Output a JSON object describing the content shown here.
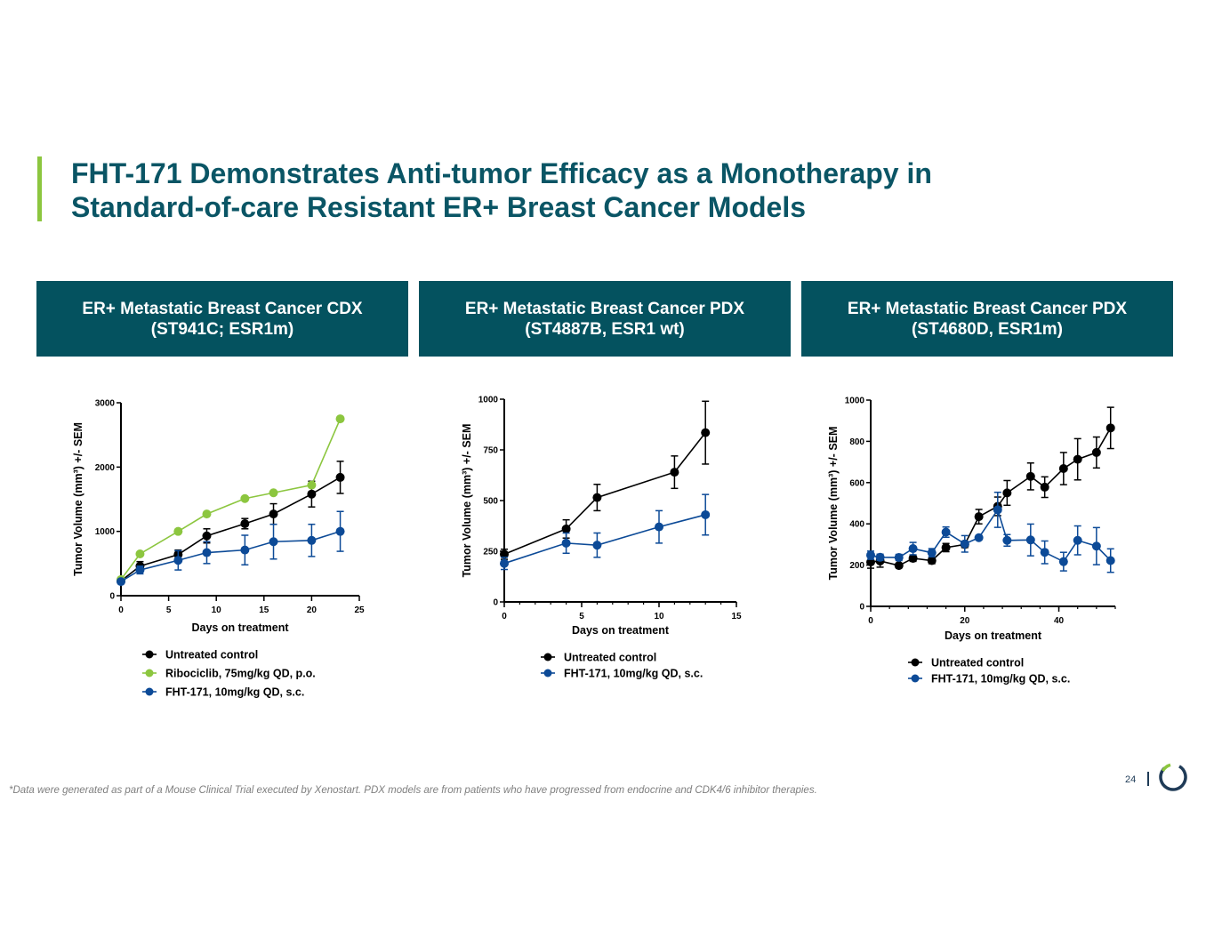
{
  "slide": {
    "title_line1": "FHT-171 Demonstrates Anti-tumor Efficacy as a Monotherapy in",
    "title_line2": "Standard-of-care Resistant ER+ Breast Cancer Models",
    "footnote": "*Data were generated as part of a Mouse Clinical Trial executed by Xenostart. PDX models are from patients who have progressed from endocrine and CDK4/6 inhibitor therapies.",
    "page_number": "24",
    "accent_color": "#8cc63f",
    "header_color": "#04525f",
    "title_color": "#0a5565"
  },
  "panels": [
    {
      "line1": "ER+ Metastatic Breast Cancer CDX",
      "line2": "(ST941C; ESR1m)"
    },
    {
      "line1": "ER+ Metastatic Breast Cancer PDX",
      "line2": "(ST4887B, ESR1 wt)"
    },
    {
      "line1": "ER+ Metastatic Breast Cancer PDX",
      "line2": "(ST4680D, ESR1m)"
    }
  ],
  "chart_data": [
    {
      "type": "line",
      "title": "ER+ Metastatic Breast Cancer CDX (ST941C; ESR1m)",
      "xlabel": "Days on treatment",
      "ylabel": "Tumor Volume (mm3) +/- SEM",
      "xlim": [
        0,
        25
      ],
      "ylim": [
        0,
        3000
      ],
      "xticks": [
        0,
        5,
        10,
        15,
        20,
        25
      ],
      "yticks": [
        0,
        1000,
        2000,
        3000
      ],
      "legend_position": "bottom",
      "series": [
        {
          "name": "Untreated control",
          "color": "#000000",
          "x": [
            0,
            2,
            6,
            9,
            13,
            16,
            20,
            23
          ],
          "y": [
            230,
            460,
            640,
            930,
            1120,
            1270,
            1580,
            1840
          ],
          "err": [
            40,
            70,
            70,
            110,
            80,
            160,
            200,
            250
          ]
        },
        {
          "name": "Ribociclib, 75mg/kg QD, p.o.",
          "color": "#8cc63f",
          "x": [
            0,
            2,
            6,
            9,
            13,
            16,
            20,
            23
          ],
          "y": [
            250,
            650,
            1000,
            1270,
            1510,
            1600,
            1720,
            2750
          ],
          "err": []
        },
        {
          "name": "FHT-171, 10mg/kg QD, s.c.",
          "color": "#0c4a97",
          "x": [
            0,
            2,
            6,
            9,
            13,
            16,
            20,
            23
          ],
          "y": [
            220,
            400,
            550,
            670,
            710,
            840,
            860,
            1000
          ],
          "err": [
            30,
            60,
            150,
            170,
            230,
            270,
            250,
            310
          ]
        }
      ]
    },
    {
      "type": "line",
      "title": "ER+ Metastatic Breast Cancer PDX (ST4887B, ESR1 wt)",
      "xlabel": "Days on treatment",
      "ylabel": "Tumor Volume (mm3) +/- SEM",
      "xlim": [
        0,
        15
      ],
      "ylim": [
        0,
        1000
      ],
      "xticks": [
        0,
        5,
        10,
        15
      ],
      "yticks": [
        0,
        250,
        500,
        750,
        1000
      ],
      "legend_position": "bottom",
      "series": [
        {
          "name": "Untreated control",
          "color": "#000000",
          "x": [
            0,
            4,
            6,
            11,
            13
          ],
          "y": [
            235,
            360,
            515,
            640,
            835
          ],
          "err": [
            25,
            45,
            65,
            80,
            155
          ]
        },
        {
          "name": "FHT-171, 10mg/kg QD, s.c.",
          "color": "#0c4a97",
          "x": [
            0,
            4,
            6,
            10,
            13
          ],
          "y": [
            190,
            290,
            280,
            370,
            430
          ],
          "err": [
            30,
            50,
            60,
            80,
            100
          ]
        }
      ]
    },
    {
      "type": "line",
      "title": "ER+ Metastatic Breast Cancer PDX (ST4680D, ESR1m)",
      "xlabel": "Days on treatment",
      "ylabel": "Tumor Volume (mm3) +/- SEM",
      "xlim": [
        0,
        52
      ],
      "ylim": [
        0,
        1000
      ],
      "xticks": [
        0,
        20,
        40
      ],
      "yticks": [
        0,
        200,
        400,
        600,
        800,
        1000
      ],
      "legend_position": "bottom",
      "series": [
        {
          "name": "Untreated control",
          "color": "#000000",
          "x": [
            0,
            2,
            6,
            9,
            13,
            16,
            20,
            23,
            27,
            29,
            34,
            37,
            41,
            44,
            48,
            51
          ],
          "y": [
            215,
            220,
            198,
            233,
            222,
            285,
            300,
            435,
            485,
            550,
            630,
            578,
            668,
            713,
            746,
            865
          ],
          "err": [
            30,
            30,
            10,
            15,
            15,
            20,
            15,
            35,
            45,
            60,
            65,
            50,
            78,
            100,
            75,
            100
          ]
        },
        {
          "name": "FHT-171, 10mg/kg QD, s.c.",
          "color": "#0c4a97",
          "x": [
            0,
            2,
            6,
            9,
            13,
            16,
            20,
            23,
            27,
            29,
            34,
            37,
            41,
            44,
            48,
            51
          ],
          "y": [
            248,
            238,
            237,
            280,
            260,
            360,
            303,
            333,
            468,
            320,
            322,
            262,
            217,
            320,
            292,
            222
          ],
          "err": [
            20,
            15,
            15,
            30,
            20,
            25,
            40,
            10,
            85,
            28,
            77,
            55,
            45,
            70,
            90,
            57
          ]
        }
      ]
    }
  ]
}
